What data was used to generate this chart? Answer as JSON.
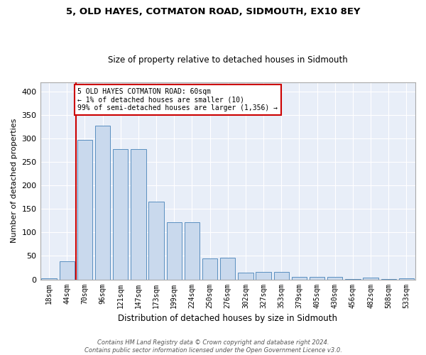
{
  "title1": "5, OLD HAYES, COTMATON ROAD, SIDMOUTH, EX10 8EY",
  "title2": "Size of property relative to detached houses in Sidmouth",
  "xlabel": "Distribution of detached houses by size in Sidmouth",
  "ylabel": "Number of detached properties",
  "bar_labels": [
    "18sqm",
    "44sqm",
    "70sqm",
    "96sqm",
    "121sqm",
    "147sqm",
    "173sqm",
    "199sqm",
    "224sqm",
    "250sqm",
    "276sqm",
    "302sqm",
    "327sqm",
    "353sqm",
    "379sqm",
    "405sqm",
    "430sqm",
    "456sqm",
    "482sqm",
    "508sqm",
    "533sqm"
  ],
  "bar_values": [
    3,
    38,
    297,
    328,
    278,
    278,
    165,
    122,
    122,
    44,
    46,
    15,
    16,
    16,
    5,
    6,
    5,
    1,
    4,
    1,
    3
  ],
  "bar_color": "#c9d9ed",
  "bar_edge_color": "#5a8fc0",
  "vline_color": "#cc0000",
  "annotation_text": "5 OLD HAYES COTMATON ROAD: 60sqm\n← 1% of detached houses are smaller (10)\n99% of semi-detached houses are larger (1,356) →",
  "annotation_box_color": "#ffffff",
  "annotation_box_edge": "#cc0000",
  "footnote": "Contains HM Land Registry data © Crown copyright and database right 2024.\nContains public sector information licensed under the Open Government Licence v3.0.",
  "ylim": [
    0,
    420
  ],
  "yticks": [
    0,
    50,
    100,
    150,
    200,
    250,
    300,
    350,
    400
  ],
  "plot_bg_color": "#e8eef8",
  "fig_bg_color": "#ffffff"
}
